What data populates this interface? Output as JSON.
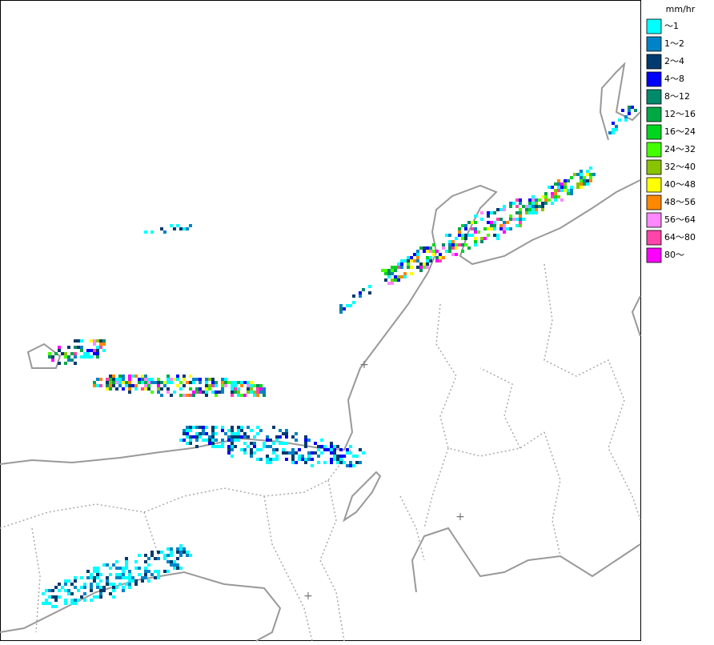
{
  "legend": {
    "unit": "mm/hr",
    "items": [
      {
        "label": "～1",
        "color": "#00ffff"
      },
      {
        "label": "1～2",
        "color": "#0083c6"
      },
      {
        "label": "2～4",
        "color": "#003a6e"
      },
      {
        "label": "4～8",
        "color": "#0000ff"
      },
      {
        "label": "8～12",
        "color": "#008a6a"
      },
      {
        "label": "12～16",
        "color": "#00a844"
      },
      {
        "label": "16～24",
        "color": "#00d41e"
      },
      {
        "label": "24～32",
        "color": "#44ff00"
      },
      {
        "label": "32～40",
        "color": "#88c400"
      },
      {
        "label": "40～48",
        "color": "#ffff00"
      },
      {
        "label": "48～56",
        "color": "#ff8800"
      },
      {
        "label": "56～64",
        "color": "#ff88ff"
      },
      {
        "label": "64～80",
        "color": "#ff44aa"
      },
      {
        "label": "80～",
        "color": "#ff00ff"
      }
    ]
  }
}
